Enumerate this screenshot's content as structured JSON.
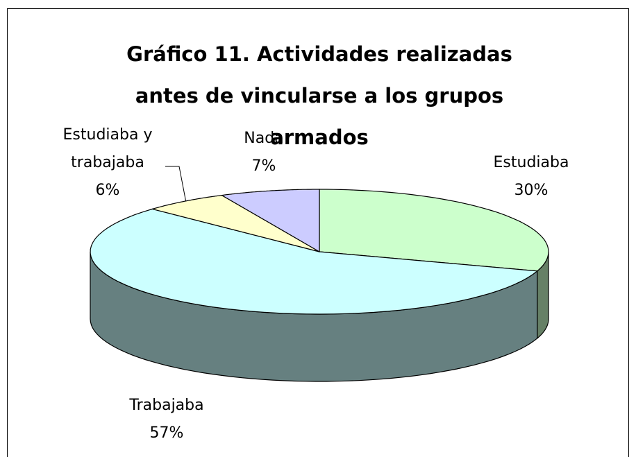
{
  "chart_data": {
    "type": "pie3d",
    "title": "Gráfico 11. Actividades realizadas antes de vincularse a los grupos armados",
    "categories": [
      "Estudiaba",
      "Trabajaba",
      "Estudiaba y trabajaba",
      "Nada"
    ],
    "values": [
      30,
      57,
      6,
      7
    ],
    "value_labels": [
      "30%",
      "57%",
      "6%",
      "7%"
    ],
    "colors": [
      "#ccffcc",
      "#ccffff",
      "#ffffcc",
      "#ccccff"
    ]
  }
}
